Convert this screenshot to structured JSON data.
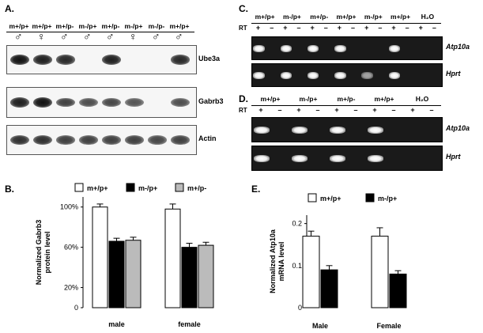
{
  "panels": {
    "A": {
      "label": "A.",
      "lanes": [
        {
          "genotype": "m+/p+",
          "sex": "♂"
        },
        {
          "genotype": "m+/p+",
          "sex": "♀"
        },
        {
          "genotype": "m+/p-",
          "sex": "♂"
        },
        {
          "genotype": "m-/p+",
          "sex": "♂"
        },
        {
          "genotype": "m+/p-",
          "sex": "♂"
        },
        {
          "genotype": "m-/p+",
          "sex": "♀"
        },
        {
          "genotype": "m-/p-",
          "sex": "♂"
        },
        {
          "genotype": "m+/p+",
          "sex": "♂"
        }
      ],
      "blots": [
        {
          "name": "Ube3a",
          "intensity": [
            1.0,
            0.9,
            0.85,
            0.0,
            0.9,
            0.0,
            0.0,
            0.85
          ]
        },
        {
          "name": "Gabrb3",
          "intensity": [
            0.9,
            1.0,
            0.7,
            0.6,
            0.65,
            0.55,
            0.0,
            0.6
          ]
        },
        {
          "name": "Actin",
          "intensity": [
            0.8,
            0.8,
            0.7,
            0.7,
            0.7,
            0.7,
            0.65,
            0.7
          ]
        }
      ]
    },
    "C": {
      "label": "C.",
      "rt_label": "RT",
      "groups": [
        "m+/p+",
        "m-/p+",
        "m+/p-",
        "m+/p+",
        "m-/p+",
        "m+/p+",
        "H₂O"
      ],
      "rt_signs": [
        "+",
        "–",
        "+",
        "–",
        "+",
        "–",
        "+",
        "–",
        "+",
        "–",
        "+",
        "–",
        "+",
        "–"
      ],
      "gels": [
        {
          "name": "Atp10a",
          "bands": [
            1,
            0,
            1,
            0,
            1,
            0,
            1,
            0,
            0,
            0,
            1,
            0,
            0,
            0
          ]
        },
        {
          "name": "Hprt",
          "bands": [
            1,
            0,
            1,
            0,
            1,
            0,
            1,
            0,
            0.6,
            0,
            1,
            0,
            0,
            0
          ]
        }
      ]
    },
    "D": {
      "label": "D.",
      "rt_label": "RT",
      "groups": [
        "m+/p+",
        "m-/p+",
        "m+/p-",
        "m+/p+",
        "H₂O"
      ],
      "rt_signs": [
        "+",
        "–",
        "+",
        "–",
        "+",
        "–",
        "+",
        "–",
        "+",
        "–"
      ],
      "gels": [
        {
          "name": "Atp10a",
          "bands": [
            1,
            0,
            1,
            0,
            1,
            0,
            1,
            0,
            0,
            0
          ]
        },
        {
          "name": "Hprt",
          "bands": [
            1,
            0,
            1,
            0,
            1,
            0,
            1,
            0,
            0,
            0
          ]
        }
      ]
    },
    "B": {
      "label": "B.",
      "chart_data": {
        "type": "bar",
        "ylabel": "Normalized Gabrb3 protein  level",
        "xlabel": "",
        "categories": [
          "male",
          "female"
        ],
        "yticks": [
          "100%",
          "60%",
          "20%",
          "0"
        ],
        "ytick_values": [
          100,
          60,
          20,
          0
        ],
        "ylim": [
          0,
          110
        ],
        "series": [
          {
            "name": "m+/p+",
            "color": "#ffffff",
            "values": [
              100,
              98
            ],
            "errors": [
              3,
              5
            ]
          },
          {
            "name": "m-/p+",
            "color": "#000000",
            "values": [
              66,
              60
            ],
            "errors": [
              3,
              4
            ]
          },
          {
            "name": "m+/p-",
            "color": "#bbbbbb",
            "values": [
              67,
              62
            ],
            "errors": [
              3,
              3
            ]
          }
        ],
        "legend": "top"
      }
    },
    "E": {
      "label": "E.",
      "chart_data": {
        "type": "bar",
        "ylabel": "Normalized Atp10a mRNA level",
        "xlabel": "",
        "categories": [
          "Male",
          "Female"
        ],
        "yticks": [
          "0.2",
          "0.1",
          "0"
        ],
        "ytick_values": [
          0.2,
          0.1,
          0
        ],
        "ylim": [
          0,
          0.22
        ],
        "series": [
          {
            "name": "m+/p+",
            "color": "#ffffff",
            "values": [
              0.17,
              0.17
            ],
            "errors": [
              0.012,
              0.02
            ]
          },
          {
            "name": "m-/p+",
            "color": "#000000",
            "values": [
              0.09,
              0.08
            ],
            "errors": [
              0.01,
              0.008
            ]
          }
        ],
        "legend": "top"
      }
    }
  }
}
